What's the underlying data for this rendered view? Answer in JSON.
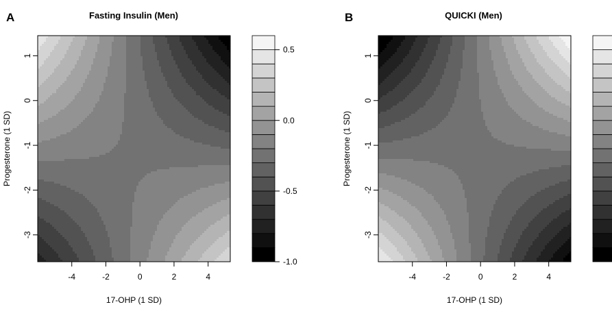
{
  "chart_data": [
    {
      "panel_letter": "A",
      "type": "heatmap",
      "subtype": "filled-contour (saddle)",
      "title": "Fasting Insulin (Men)",
      "xlabel": "17-OHP (1 SD)",
      "ylabel": "Progesterone (1 SD)",
      "xlim": [
        -6.0,
        5.3
      ],
      "ylim": [
        -3.6,
        1.45
      ],
      "x_ticks": [
        -4,
        -2,
        0,
        2,
        4
      ],
      "y_ticks": [
        -3,
        -2,
        -1,
        0,
        1
      ],
      "saddle_point": {
        "x": -0.7,
        "y": -1.4
      },
      "surface_min": -1.0,
      "surface_max": 0.6,
      "corner_values": {
        "top_left": 0.5,
        "top_right": -1.0,
        "bottom_left": -0.9,
        "bottom_right": 0.55
      },
      "colorbar": {
        "levels": [
          -1.0,
          -0.9,
          -0.8,
          -0.7,
          -0.6,
          -0.5,
          -0.4,
          -0.3,
          -0.2,
          -0.1,
          0.0,
          0.1,
          0.2,
          0.3,
          0.4,
          0.5,
          0.6
        ],
        "tick_values": [
          0.5,
          0.0,
          -0.5,
          -1.0
        ],
        "tick_labels": [
          "0.5",
          "0.0",
          "-0.5",
          "-1.0"
        ],
        "palette": "grayscale, black = low, white = high"
      }
    },
    {
      "panel_letter": "B",
      "type": "heatmap",
      "subtype": "filled-contour (saddle)",
      "title": "QUICKI (Men)",
      "xlabel": "17-OHP (1 SD)",
      "ylabel": "Progesterone (1 SD)",
      "xlim": [
        -6.0,
        5.3
      ],
      "ylim": [
        -3.6,
        1.45
      ],
      "x_ticks": [
        -4,
        -2,
        0,
        2,
        4
      ],
      "y_ticks": [
        -3,
        -2,
        -1,
        0,
        1
      ],
      "saddle_point": {
        "x": -0.4,
        "y": -1.2
      },
      "surface_min": -1.0,
      "surface_max": 0.6,
      "corner_values": {
        "top_left": -1.0,
        "top_right": 0.6,
        "bottom_left": 0.5,
        "bottom_right": -1.0
      },
      "colorbar": {
        "levels": [
          -1.0,
          -0.9,
          -0.8,
          -0.7,
          -0.6,
          -0.5,
          -0.4,
          -0.3,
          -0.2,
          -0.1,
          0.0,
          0.1,
          0.2,
          0.3,
          0.4,
          0.5,
          0.6
        ],
        "tick_values": [],
        "tick_labels": [],
        "palette": "grayscale, black = low, white = high"
      }
    }
  ]
}
